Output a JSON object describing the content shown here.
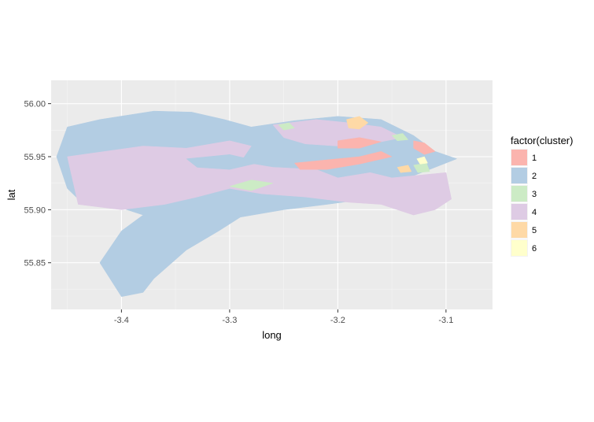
{
  "chart_data": {
    "type": "map",
    "xlabel": "long",
    "ylabel": "lat",
    "xlim": [
      -3.465,
      -3.057
    ],
    "ylim": [
      55.806,
      56.022
    ],
    "x_ticks": [
      -3.4,
      -3.3,
      -3.2,
      -3.1
    ],
    "x_tick_labels": [
      "-3.4",
      "-3.3",
      "-3.2",
      "-3.1"
    ],
    "y_ticks": [
      55.85,
      55.9,
      55.95,
      56.0
    ],
    "y_tick_labels": [
      "55.85",
      "55.90",
      "55.95",
      "56.00"
    ],
    "grid": true,
    "panel_background": "#ebebeb",
    "legend": {
      "title": "factor(cluster)",
      "placement": "right",
      "entries": [
        {
          "label": "1",
          "color": "#fbb4ae"
        },
        {
          "label": "2",
          "color": "#b3cde3"
        },
        {
          "label": "3",
          "color": "#ccebc5"
        },
        {
          "label": "4",
          "color": "#decbe4"
        },
        {
          "label": "5",
          "color": "#fed9a6"
        },
        {
          "label": "6",
          "color": "#ffffcc"
        }
      ]
    },
    "regions": [
      {
        "cluster": "2",
        "outline": [
          [
            -3.45,
            55.978
          ],
          [
            -3.42,
            55.985
          ],
          [
            -3.37,
            55.993
          ],
          [
            -3.335,
            55.992
          ],
          [
            -3.305,
            55.985
          ],
          [
            -3.28,
            55.978
          ],
          [
            -3.24,
            55.984
          ],
          [
            -3.2,
            55.988
          ],
          [
            -3.16,
            55.985
          ],
          [
            -3.13,
            55.97
          ],
          [
            -3.11,
            55.955
          ],
          [
            -3.09,
            55.948
          ],
          [
            -3.11,
            55.94
          ],
          [
            -3.13,
            55.932
          ],
          [
            -3.15,
            55.922
          ],
          [
            -3.16,
            55.912
          ],
          [
            -3.21,
            55.905
          ],
          [
            -3.25,
            55.9
          ],
          [
            -3.29,
            55.893
          ],
          [
            -3.31,
            55.88
          ],
          [
            -3.34,
            55.862
          ],
          [
            -3.37,
            55.835
          ],
          [
            -3.38,
            55.822
          ],
          [
            -3.4,
            55.818
          ],
          [
            -3.42,
            55.85
          ],
          [
            -3.4,
            55.88
          ],
          [
            -3.38,
            55.895
          ],
          [
            -3.41,
            55.905
          ],
          [
            -3.44,
            55.91
          ],
          [
            -3.45,
            55.92
          ],
          [
            -3.46,
            55.95
          ]
        ]
      },
      {
        "cluster": "4",
        "outline": [
          [
            -3.45,
            55.95
          ],
          [
            -3.38,
            55.96
          ],
          [
            -3.34,
            55.958
          ],
          [
            -3.3,
            55.965
          ],
          [
            -3.28,
            55.96
          ],
          [
            -3.29,
            55.945
          ],
          [
            -3.26,
            55.94
          ],
          [
            -3.22,
            55.938
          ],
          [
            -3.2,
            55.93
          ],
          [
            -3.17,
            55.935
          ],
          [
            -3.15,
            55.93
          ],
          [
            -3.1,
            55.935
          ],
          [
            -3.095,
            55.91
          ],
          [
            -3.11,
            55.9
          ],
          [
            -3.13,
            55.895
          ],
          [
            -3.16,
            55.905
          ],
          [
            -3.19,
            55.907
          ],
          [
            -3.23,
            55.912
          ],
          [
            -3.27,
            55.915
          ],
          [
            -3.3,
            55.92
          ],
          [
            -3.33,
            55.912
          ],
          [
            -3.36,
            55.905
          ],
          [
            -3.4,
            55.9
          ],
          [
            -3.44,
            55.905
          ]
        ]
      },
      {
        "cluster": "4",
        "outline": [
          [
            -3.26,
            55.98
          ],
          [
            -3.22,
            55.985
          ],
          [
            -3.19,
            55.982
          ],
          [
            -3.16,
            55.978
          ],
          [
            -3.14,
            55.968
          ],
          [
            -3.17,
            55.962
          ],
          [
            -3.2,
            55.96
          ],
          [
            -3.23,
            55.962
          ],
          [
            -3.25,
            55.968
          ]
        ]
      },
      {
        "cluster": "2",
        "outline": [
          [
            -3.34,
            55.948
          ],
          [
            -3.3,
            55.952
          ],
          [
            -3.27,
            55.945
          ],
          [
            -3.3,
            55.938
          ],
          [
            -3.33,
            55.94
          ]
        ]
      },
      {
        "cluster": "1",
        "outline": [
          [
            -3.24,
            55.944
          ],
          [
            -3.21,
            55.947
          ],
          [
            -3.18,
            55.95
          ],
          [
            -3.16,
            55.955
          ],
          [
            -3.15,
            55.95
          ],
          [
            -3.18,
            55.943
          ],
          [
            -3.21,
            55.938
          ],
          [
            -3.235,
            55.938
          ]
        ]
      },
      {
        "cluster": "1",
        "outline": [
          [
            -3.2,
            55.965
          ],
          [
            -3.18,
            55.968
          ],
          [
            -3.16,
            55.964
          ],
          [
            -3.18,
            55.958
          ],
          [
            -3.2,
            55.958
          ]
        ]
      },
      {
        "cluster": "1",
        "outline": [
          [
            -3.13,
            55.965
          ],
          [
            -3.12,
            55.963
          ],
          [
            -3.11,
            55.955
          ],
          [
            -3.12,
            55.952
          ],
          [
            -3.13,
            55.958
          ]
        ]
      },
      {
        "cluster": "5",
        "outline": [
          [
            -3.192,
            55.985
          ],
          [
            -3.18,
            55.988
          ],
          [
            -3.172,
            55.982
          ],
          [
            -3.18,
            55.976
          ],
          [
            -3.19,
            55.977
          ]
        ]
      },
      {
        "cluster": "3",
        "outline": [
          [
            -3.3,
            55.922
          ],
          [
            -3.28,
            55.928
          ],
          [
            -3.26,
            55.925
          ],
          [
            -3.28,
            55.918
          ]
        ]
      },
      {
        "cluster": "3",
        "outline": [
          [
            -3.255,
            55.98
          ],
          [
            -3.245,
            55.982
          ],
          [
            -3.24,
            55.977
          ],
          [
            -3.25,
            55.975
          ]
        ]
      },
      {
        "cluster": "3",
        "outline": [
          [
            -3.13,
            55.942
          ],
          [
            -3.118,
            55.944
          ],
          [
            -3.115,
            55.936
          ],
          [
            -3.126,
            55.935
          ]
        ]
      },
      {
        "cluster": "3",
        "outline": [
          [
            -3.15,
            55.97
          ],
          [
            -3.14,
            55.972
          ],
          [
            -3.135,
            55.966
          ],
          [
            -3.145,
            55.965
          ]
        ]
      },
      {
        "cluster": "5",
        "outline": [
          [
            -3.145,
            55.94
          ],
          [
            -3.135,
            55.942
          ],
          [
            -3.132,
            55.936
          ],
          [
            -3.142,
            55.935
          ]
        ]
      },
      {
        "cluster": "6",
        "outline": [
          [
            -3.127,
            55.948
          ],
          [
            -3.12,
            55.95
          ],
          [
            -3.117,
            55.944
          ],
          [
            -3.124,
            55.943
          ]
        ]
      }
    ]
  }
}
